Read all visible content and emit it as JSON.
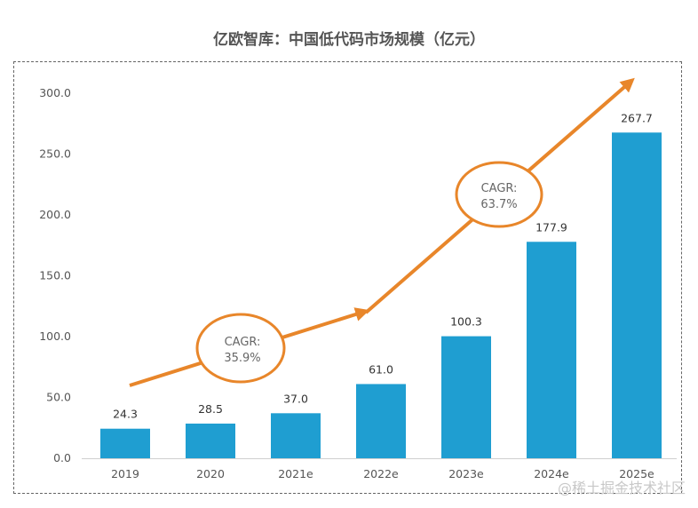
{
  "chart_data": {
    "type": "bar",
    "title": "亿欧智库：中国低代码市场规模（亿元）",
    "xlabel": "",
    "ylabel": "",
    "categories": [
      "2019",
      "2020",
      "2021e",
      "2022e",
      "2023e",
      "2024e",
      "2025e"
    ],
    "values": [
      24.3,
      28.5,
      37.0,
      61.0,
      100.3,
      177.9,
      267.7
    ],
    "value_labels": [
      "24.3",
      "28.5",
      "37.0",
      "61.0",
      "100.3",
      "177.9",
      "267.7"
    ],
    "ylim": [
      0,
      300
    ],
    "yticks": [
      "0.0",
      "50.0",
      "100.0",
      "150.0",
      "200.0",
      "250.0",
      "300.0"
    ],
    "grid": false,
    "legend": "none",
    "bar_color": "#1f9ed1",
    "annotations": [
      {
        "text_line1": "CAGR:",
        "text_line2": "35.9%",
        "span": [
          "2019",
          "2022e"
        ]
      },
      {
        "text_line1": "CAGR:",
        "text_line2": "63.7%",
        "span": [
          "2022e",
          "2025e"
        ]
      }
    ],
    "annotation_color": "#e8862a"
  },
  "watermark": "@稀土掘金技术社区"
}
